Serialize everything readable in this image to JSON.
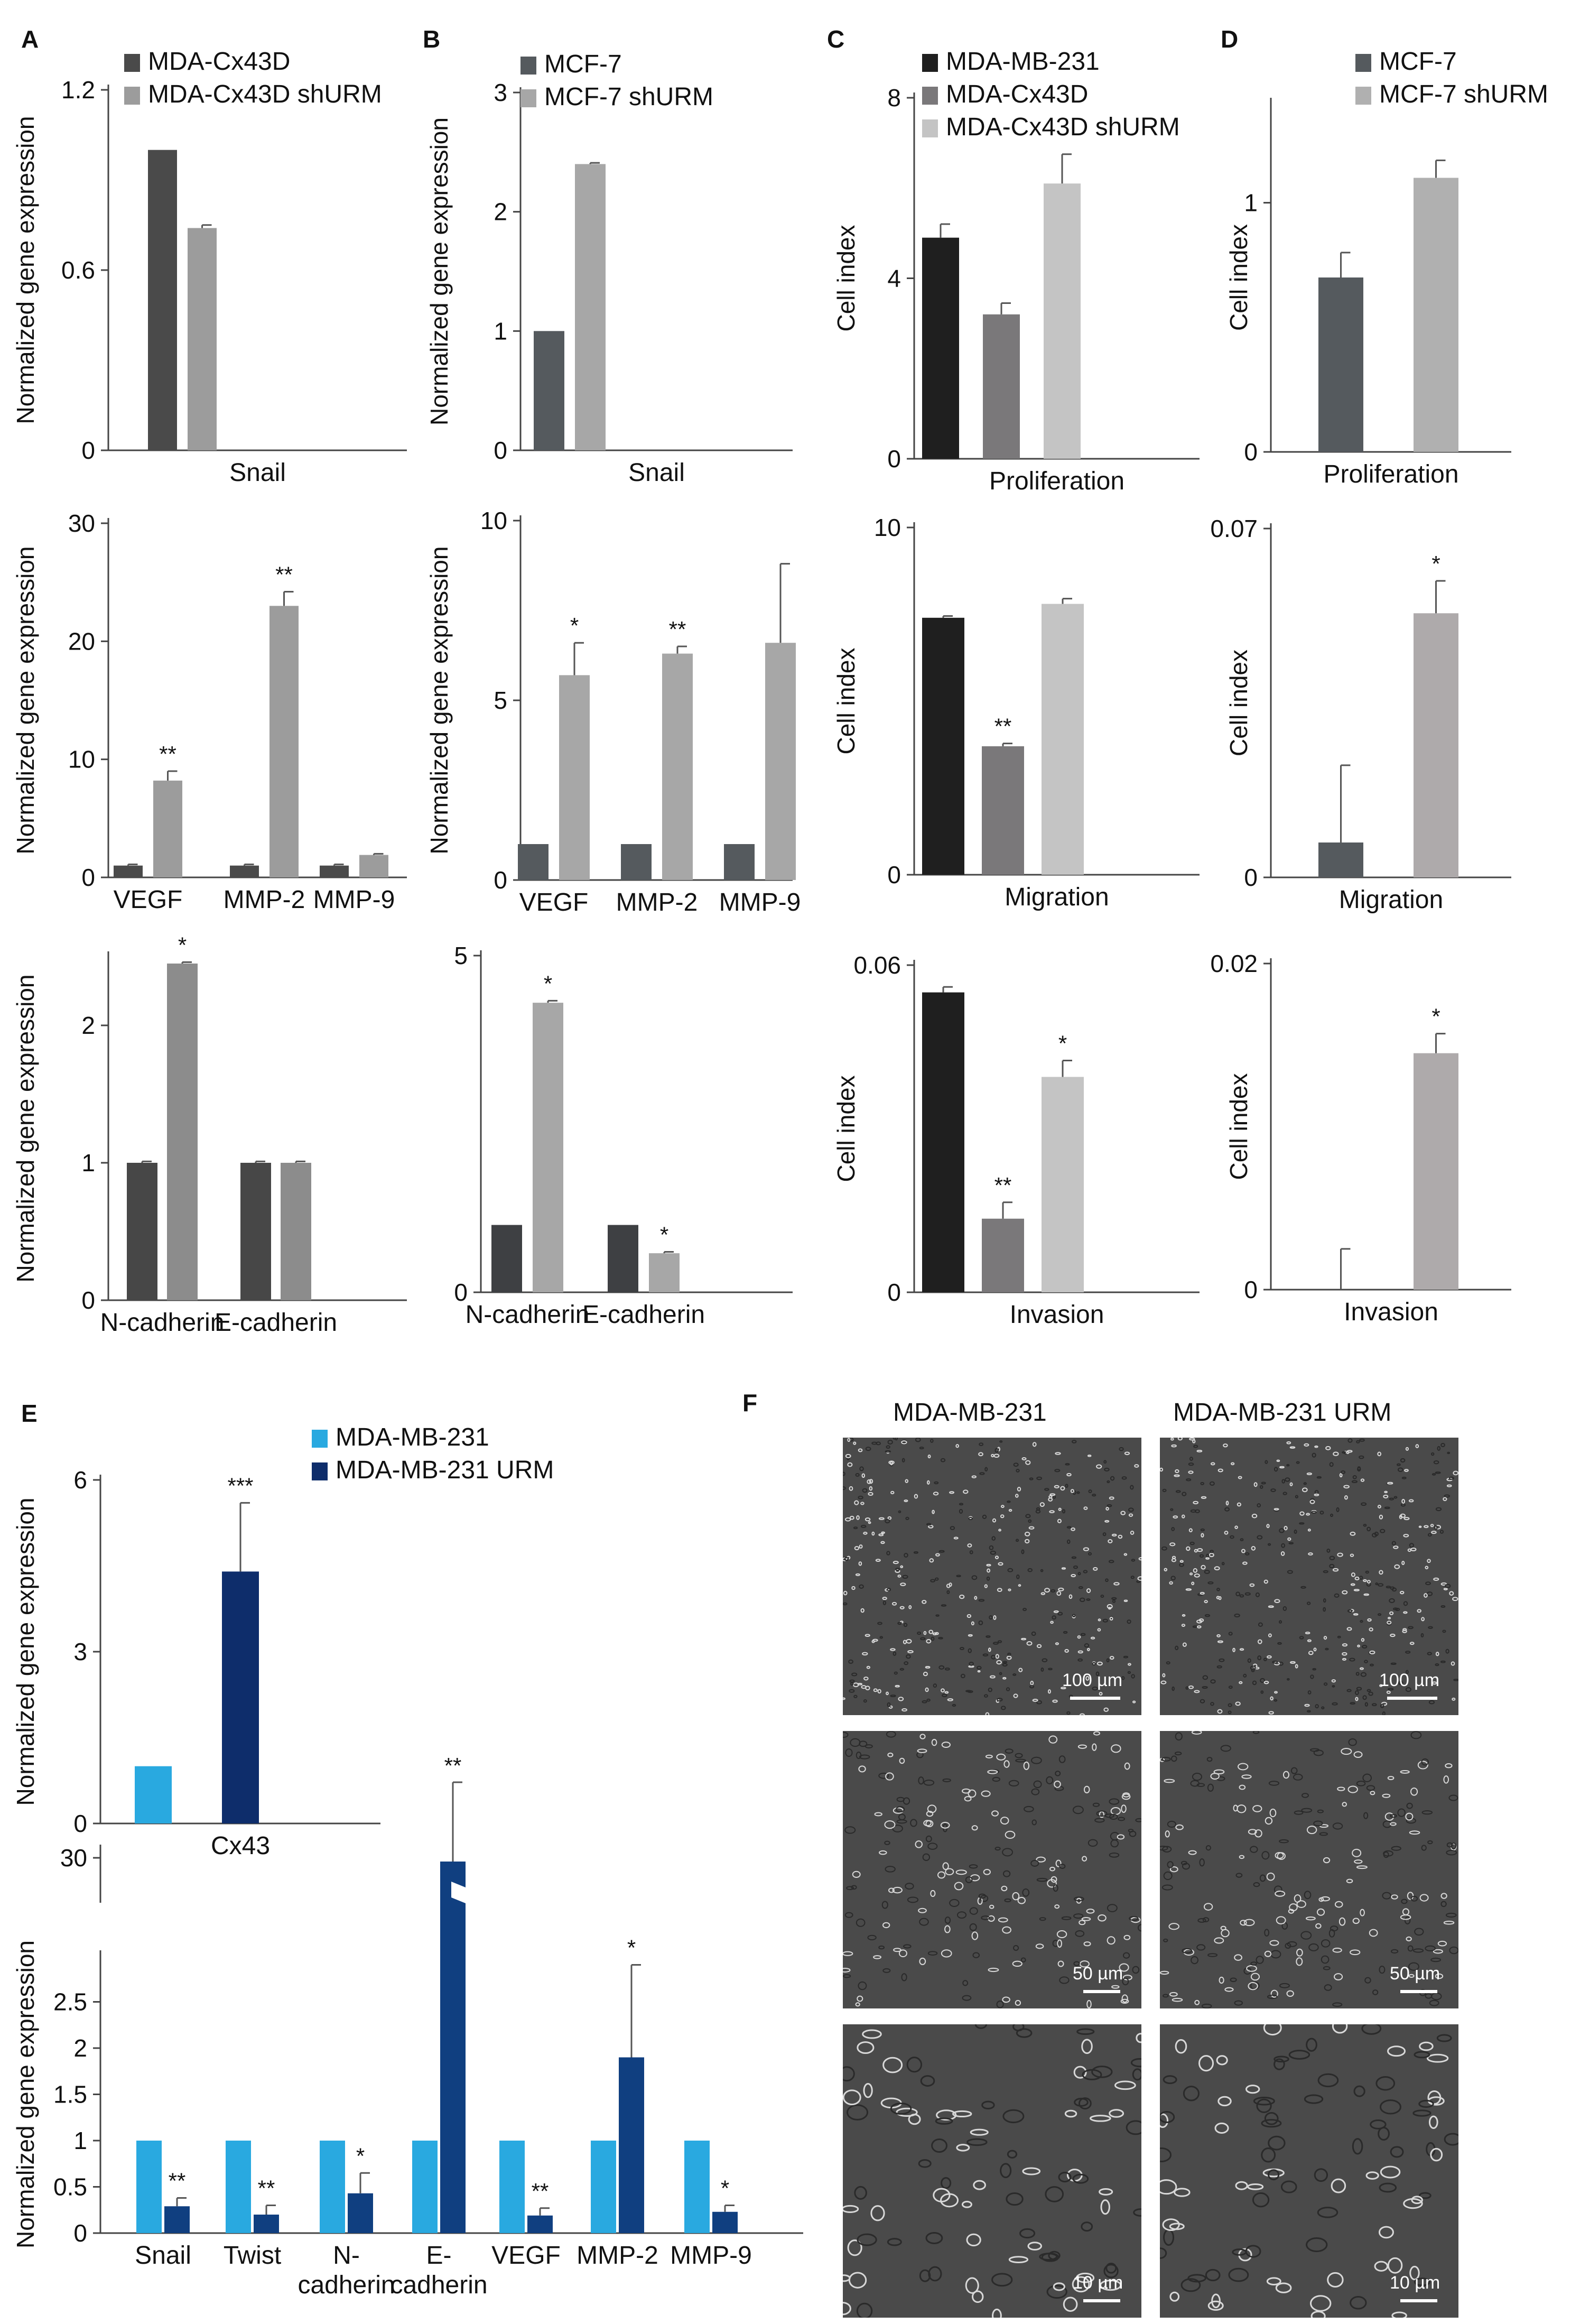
{
  "figure": {
    "panel_labels": [
      "A",
      "B",
      "C",
      "D",
      "E",
      "F"
    ],
    "colors": {
      "mda_cx43d": "#4a4a4a",
      "mda_cx43d_shurm": "#9c9c9c",
      "mcf7": "#555a5e",
      "mcf7_shurm": "#a7a7a7",
      "mda_mb231": "#1f1f1f",
      "cx43d_bar": "#7a787a",
      "shurm_light": "#c4c4c4",
      "e_mda": "#29a9e0",
      "e_urm": "#0e2d6b"
    }
  },
  "chart_data": [
    {
      "id": "A1",
      "panel": "A",
      "type": "bar",
      "ylabel": "Normalized gene expression",
      "ylim": [
        0,
        1.2
      ],
      "yticks": [
        "0",
        "0.6",
        "1.2"
      ],
      "categories": [
        "Snail"
      ],
      "legend": [
        "MDA-Cx43D",
        "MDA-Cx43D shURM"
      ],
      "series": [
        {
          "name": "MDA-Cx43D",
          "color": "#4a4a4a",
          "values": [
            1.0
          ],
          "errors": [
            0
          ]
        },
        {
          "name": "MDA-Cx43D shURM",
          "color": "#9c9c9c",
          "values": [
            0.74
          ],
          "errors": [
            0.01
          ]
        }
      ],
      "sig": [
        [
          "",
          ""
        ]
      ]
    },
    {
      "id": "A2",
      "panel": "",
      "type": "bar",
      "ylabel": "Normalized gene expression",
      "ylim": [
        0,
        30
      ],
      "yticks": [
        "0",
        "10",
        "20",
        "30"
      ],
      "categories": [
        "VEGF",
        "MMP-2",
        "MMP-9"
      ],
      "series": [
        {
          "name": "MDA-Cx43D",
          "color": "#4a4a4a",
          "values": [
            1,
            1,
            1
          ],
          "errors": [
            0.1,
            0.1,
            0.1
          ]
        },
        {
          "name": "MDA-Cx43D shURM",
          "color": "#9c9c9c",
          "values": [
            8.2,
            23,
            1.9
          ],
          "errors": [
            0.8,
            1.2,
            0.1
          ]
        }
      ],
      "sig": [
        [
          "",
          "**"
        ],
        [
          "",
          "**"
        ],
        [
          "",
          ""
        ]
      ]
    },
    {
      "id": "A3",
      "panel": "",
      "type": "bar",
      "ylabel": "Normalized gene expression",
      "ylim": [
        0,
        2.5
      ],
      "yticks": [
        "0",
        "1",
        "2"
      ],
      "categories": [
        "N-cadherin",
        "E-cadherin"
      ],
      "series": [
        {
          "name": "MDA-Cx43D",
          "color": "#474747",
          "values": [
            1,
            1
          ],
          "errors": [
            0.01,
            0.01
          ]
        },
        {
          "name": "MDA-Cx43D shURM",
          "color": "#8c8c8c",
          "values": [
            2.45,
            1
          ],
          "errors": [
            0.01,
            0.01
          ]
        }
      ],
      "sig": [
        [
          "",
          "*"
        ],
        [
          "",
          ""
        ]
      ]
    },
    {
      "id": "B1",
      "panel": "B",
      "type": "bar",
      "ylabel": "Normalized gene expression",
      "ylim": [
        0,
        3
      ],
      "yticks": [
        "0",
        "1",
        "2",
        "3"
      ],
      "categories": [
        "Snail"
      ],
      "legend": [
        "MCF-7",
        "MCF-7 shURM"
      ],
      "series": [
        {
          "name": "MCF-7",
          "color": "#555a5e",
          "values": [
            1.0
          ],
          "errors": [
            0
          ]
        },
        {
          "name": "MCF-7 shURM",
          "color": "#a7a7a7",
          "values": [
            2.4
          ],
          "errors": [
            0.01
          ]
        }
      ],
      "sig": [
        [
          "",
          ""
        ]
      ]
    },
    {
      "id": "B2",
      "panel": "",
      "type": "bar",
      "ylabel": "Normalized gene expression",
      "ylim": [
        0,
        10
      ],
      "yticks": [
        "0",
        "5",
        "10"
      ],
      "categories": [
        "VEGF",
        "MMP-2",
        "MMP-9"
      ],
      "series": [
        {
          "name": "MCF-7",
          "color": "#555a5e",
          "values": [
            1,
            1,
            1
          ],
          "errors": [
            0,
            0,
            0
          ]
        },
        {
          "name": "MCF-7 shURM",
          "color": "#a7a7a7",
          "values": [
            5.7,
            6.3,
            6.6
          ],
          "errors": [
            0.9,
            0.2,
            2.2
          ]
        }
      ],
      "sig": [
        [
          "",
          "*"
        ],
        [
          "",
          "**"
        ],
        [
          "",
          ""
        ]
      ]
    },
    {
      "id": "B3",
      "panel": "",
      "type": "bar",
      "ylabel": "",
      "ylim": [
        0,
        5
      ],
      "yticks": [
        "0",
        "5"
      ],
      "categories": [
        "N-cadherin",
        "E-cadherin"
      ],
      "series": [
        {
          "name": "MCF-7",
          "color": "#3e4043",
          "values": [
            1,
            1
          ],
          "errors": [
            0,
            0
          ]
        },
        {
          "name": "MCF-7 shURM",
          "color": "#a7a7a7",
          "values": [
            4.3,
            0.58
          ],
          "errors": [
            0.03,
            0.02
          ]
        }
      ],
      "sig": [
        [
          "",
          "*"
        ],
        [
          "",
          "*"
        ]
      ]
    },
    {
      "id": "C1",
      "panel": "C",
      "type": "bar",
      "ylabel": "Cell index",
      "ylim": [
        0,
        8
      ],
      "yticks": [
        "0",
        "4",
        "8"
      ],
      "categories": [
        "Proliferation"
      ],
      "legend": [
        "MDA-MB-231",
        "MDA-Cx43D",
        "MDA-Cx43D shURM"
      ],
      "series": [
        {
          "name": "MDA-MB-231",
          "color": "#1f1f1f",
          "values": [
            4.9
          ],
          "errors": [
            0.3
          ]
        },
        {
          "name": "MDA-Cx43D",
          "color": "#7a787a",
          "values": [
            3.2
          ],
          "errors": [
            0.25
          ]
        },
        {
          "name": "MDA-Cx43D shURM",
          "color": "#c4c4c4",
          "values": [
            6.1
          ],
          "errors": [
            0.65
          ]
        }
      ],
      "sig": [
        [
          "",
          "",
          ""
        ]
      ]
    },
    {
      "id": "C2",
      "panel": "",
      "type": "bar",
      "ylabel": "Cell index",
      "ylim": [
        0,
        10
      ],
      "yticks": [
        "0",
        "10"
      ],
      "categories": [
        "Migration"
      ],
      "series": [
        {
          "name": "MDA-MB-231",
          "color": "#1f1f1f",
          "values": [
            7.4
          ],
          "errors": [
            0.05
          ]
        },
        {
          "name": "MDA-Cx43D",
          "color": "#7a787a",
          "values": [
            3.7
          ],
          "errors": [
            0.08
          ]
        },
        {
          "name": "MDA-Cx43D shURM",
          "color": "#c4c4c4",
          "values": [
            7.8
          ],
          "errors": [
            0.15
          ]
        }
      ],
      "sig": [
        [
          "",
          "**",
          ""
        ]
      ]
    },
    {
      "id": "C3",
      "panel": "",
      "type": "bar",
      "ylabel": "Cell index",
      "ylim": [
        0,
        0.06
      ],
      "yticks": [
        "0",
        "0.06"
      ],
      "categories": [
        "Invasion"
      ],
      "series": [
        {
          "name": "MDA-MB-231",
          "color": "#1f1f1f",
          "values": [
            0.055
          ],
          "errors": [
            0.001
          ]
        },
        {
          "name": "MDA-Cx43D",
          "color": "#7a787a",
          "values": [
            0.0135
          ],
          "errors": [
            0.003
          ]
        },
        {
          "name": "MDA-Cx43D shURM",
          "color": "#c4c4c4",
          "values": [
            0.0395
          ],
          "errors": [
            0.003
          ]
        }
      ],
      "sig": [
        [
          "",
          "**",
          "*"
        ]
      ]
    },
    {
      "id": "D1",
      "panel": "D",
      "type": "bar",
      "ylabel": "Cell index",
      "ylim": [
        0,
        1.4
      ],
      "yticks": [
        "0",
        "1"
      ],
      "categories": [
        "Proliferation"
      ],
      "legend": [
        "MCF-7",
        "MCF-7 shURM"
      ],
      "series": [
        {
          "name": "MCF-7",
          "color": "#555a5e",
          "values": [
            0.7
          ],
          "errors": [
            0.1
          ]
        },
        {
          "name": "MCF-7 shURM",
          "color": "#b0b0b0",
          "values": [
            1.1
          ],
          "errors": [
            0.07
          ]
        }
      ],
      "sig": [
        [
          "",
          ""
        ]
      ]
    },
    {
      "id": "D2",
      "panel": "",
      "type": "bar",
      "ylabel": "Cell index",
      "ylim": [
        0,
        0.07
      ],
      "yticks": [
        "0",
        "0.07"
      ],
      "categories": [
        "Migration"
      ],
      "series": [
        {
          "name": "MCF-7",
          "color": "#555a5e",
          "values": [
            0.007
          ],
          "errors": [
            0.0155
          ]
        },
        {
          "name": "MCF-7 shURM",
          "color": "#aeaaab",
          "values": [
            0.053
          ],
          "errors": [
            0.0065
          ]
        }
      ],
      "sig": [
        [
          "",
          "*"
        ]
      ]
    },
    {
      "id": "D3",
      "panel": "",
      "type": "bar",
      "ylabel": "Cell index",
      "ylim": [
        0,
        0.02
      ],
      "yticks": [
        "0",
        "0.02"
      ],
      "categories": [
        "Invasion"
      ],
      "series": [
        {
          "name": "MCF-7",
          "color": "#555a5e",
          "values": [
            0
          ],
          "errors": [
            0.0025
          ]
        },
        {
          "name": "MCF-7 shURM",
          "color": "#aeaaab",
          "values": [
            0.0145
          ],
          "errors": [
            0.0012
          ]
        }
      ],
      "sig": [
        [
          "",
          "*"
        ]
      ]
    },
    {
      "id": "E1",
      "panel": "E",
      "type": "bar",
      "ylabel": "Normalized gene expression",
      "ylim": [
        0,
        6
      ],
      "yticks": [
        "0",
        "3",
        "6"
      ],
      "categories": [
        "Cx43"
      ],
      "legend": [
        "MDA-MB-231",
        "MDA-MB-231 URM"
      ],
      "series": [
        {
          "name": "MDA-MB-231",
          "color": "#29a9e0",
          "values": [
            1
          ],
          "errors": [
            0
          ]
        },
        {
          "name": "MDA-MB-231 URM",
          "color": "#0e2d6b",
          "values": [
            4.4
          ],
          "errors": [
            1.2
          ]
        }
      ],
      "sig": [
        [
          "",
          "***"
        ]
      ]
    },
    {
      "id": "E2",
      "panel": "",
      "type": "bar",
      "ylabel": "Normalized gene expression",
      "ylim": [
        0,
        3
      ],
      "axis_break": true,
      "yticks": [
        "0",
        "0.5",
        "1",
        "1.5",
        "2",
        "2.5",
        "30"
      ],
      "categories": [
        "Snail",
        "Twist",
        "N-\ncadherin",
        "E-\ncadherin",
        "VEGF",
        "MMP-2",
        "MMP-9"
      ],
      "series": [
        {
          "name": "MDA-MB-231",
          "color": "#29a9e0",
          "values": [
            1,
            1,
            1,
            1,
            1,
            1,
            1
          ],
          "errors": [
            0,
            0,
            0,
            0,
            0,
            0,
            0
          ]
        },
        {
          "name": "MDA-MB-231 URM",
          "color": "#103f80",
          "values": [
            0.29,
            0.2,
            0.43,
            30,
            0.19,
            1.9,
            0.23
          ],
          "errors": [
            0.09,
            0.1,
            0.22,
            8,
            0.08,
            1,
            0.07
          ]
        }
      ],
      "sig": [
        [
          "",
          "**"
        ],
        [
          "",
          "**"
        ],
        [
          "",
          "*"
        ],
        [
          "",
          "**"
        ],
        [
          "",
          "**"
        ],
        [
          "",
          "*"
        ],
        [
          "",
          "*"
        ]
      ]
    }
  ],
  "micrographs": {
    "panel_label": "F",
    "columns": [
      "MDA-MB-231",
      "MDA-MB-231 URM"
    ],
    "scale_bars": [
      "100 µm",
      "50 µm",
      "10 µm"
    ]
  }
}
